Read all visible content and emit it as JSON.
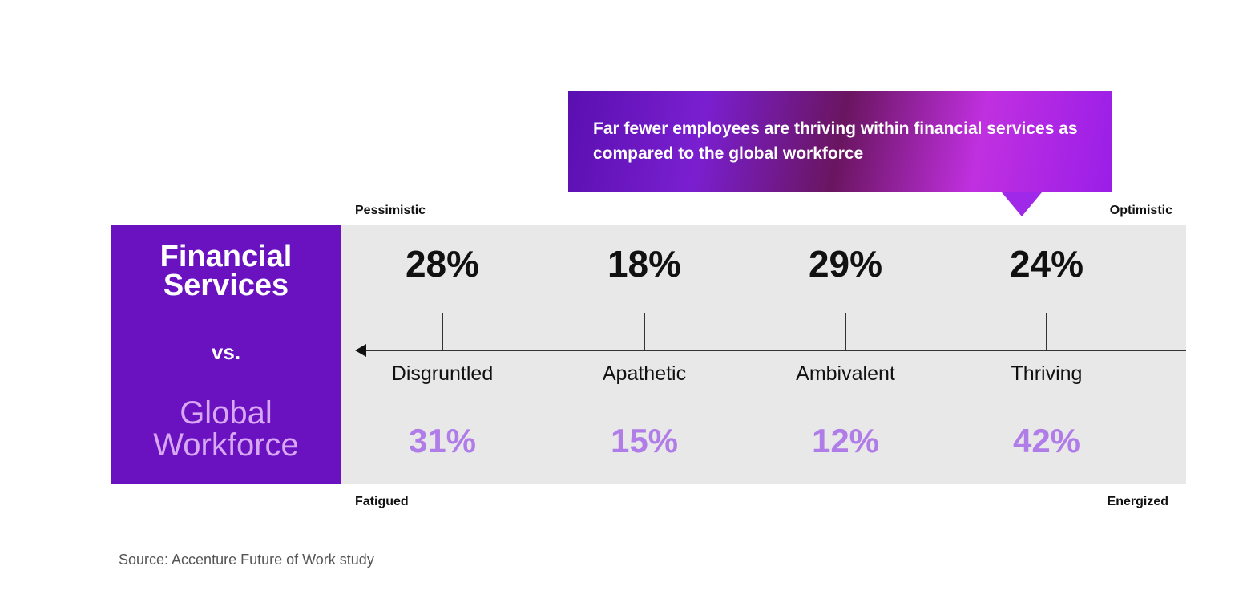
{
  "callout": "Far fewer employees are thriving within financial services as compared to the global workforce",
  "left_panel": {
    "title_line1": "Financial",
    "title_line2": "Services",
    "vs": "vs.",
    "compare_line1": "Global",
    "compare_line2": "Workforce"
  },
  "axis": {
    "top_left": "Pessimistic",
    "top_right": "Optimistic",
    "bottom_left": "Fatigued",
    "bottom_right": "Energized"
  },
  "source": "Source: Accenture Future of Work study",
  "colors": {
    "purple": "#6a12c0",
    "global_value": "#b07de8",
    "panel": "#e8e8e8"
  },
  "chart_data": {
    "type": "table",
    "title": "Far fewer employees are thriving within financial services as compared to the global workforce",
    "categories": [
      "Disgruntled",
      "Apathetic",
      "Ambivalent",
      "Thriving"
    ],
    "series": [
      {
        "name": "Financial Services",
        "values": [
          28,
          18,
          29,
          24
        ],
        "labels": [
          "28%",
          "18%",
          "29%",
          "24%"
        ]
      },
      {
        "name": "Global Workforce",
        "values": [
          31,
          15,
          12,
          42
        ],
        "labels": [
          "31%",
          "15%",
          "12%",
          "42%"
        ]
      }
    ],
    "unit": "%"
  }
}
